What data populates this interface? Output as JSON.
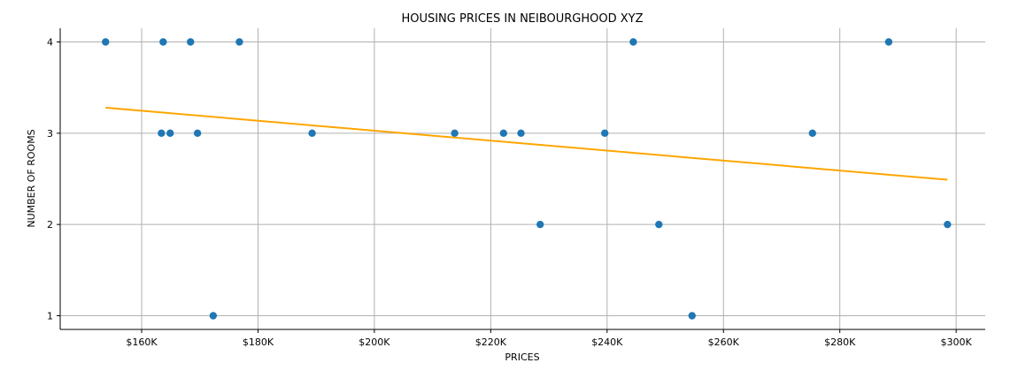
{
  "chart_data": {
    "type": "scatter",
    "title": "HOUSING PRICES IN NEIBOURGHOOD XYZ",
    "xlabel": "PRICES",
    "ylabel": "NUMBER OF ROOMS",
    "xlim": [
      146000,
      305000
    ],
    "ylim": [
      0.85,
      4.15
    ],
    "xticks": [
      {
        "value": 160000,
        "label": "$160K"
      },
      {
        "value": 180000,
        "label": "$180K"
      },
      {
        "value": 200000,
        "label": "$200K"
      },
      {
        "value": 220000,
        "label": "$220K"
      },
      {
        "value": 240000,
        "label": "$240K"
      },
      {
        "value": 260000,
        "label": "$260K"
      },
      {
        "value": 280000,
        "label": "$280K"
      },
      {
        "value": 300000,
        "label": "$300K"
      }
    ],
    "yticks": [
      {
        "value": 1,
        "label": "1"
      },
      {
        "value": 2,
        "label": "2"
      },
      {
        "value": 3,
        "label": "3"
      },
      {
        "value": 4,
        "label": "4"
      }
    ],
    "grid": true,
    "points": [
      {
        "x": 153800,
        "y": 4
      },
      {
        "x": 163700,
        "y": 4
      },
      {
        "x": 168400,
        "y": 4
      },
      {
        "x": 176800,
        "y": 4
      },
      {
        "x": 244500,
        "y": 4
      },
      {
        "x": 288400,
        "y": 4
      },
      {
        "x": 163400,
        "y": 3
      },
      {
        "x": 164900,
        "y": 3
      },
      {
        "x": 169600,
        "y": 3
      },
      {
        "x": 189300,
        "y": 3
      },
      {
        "x": 213800,
        "y": 3
      },
      {
        "x": 222200,
        "y": 3
      },
      {
        "x": 225200,
        "y": 3
      },
      {
        "x": 239600,
        "y": 3
      },
      {
        "x": 275300,
        "y": 3
      },
      {
        "x": 228500,
        "y": 2
      },
      {
        "x": 248900,
        "y": 2
      },
      {
        "x": 298500,
        "y": 2
      },
      {
        "x": 172300,
        "y": 1
      },
      {
        "x": 254600,
        "y": 1
      }
    ],
    "trendline": {
      "x": [
        153800,
        298500
      ],
      "y": [
        3.28,
        2.49
      ]
    },
    "colors": {
      "points": "#1f77b4",
      "trendline": "#ffa500",
      "grid": "#b0b0b0",
      "axis": "#000000"
    }
  }
}
